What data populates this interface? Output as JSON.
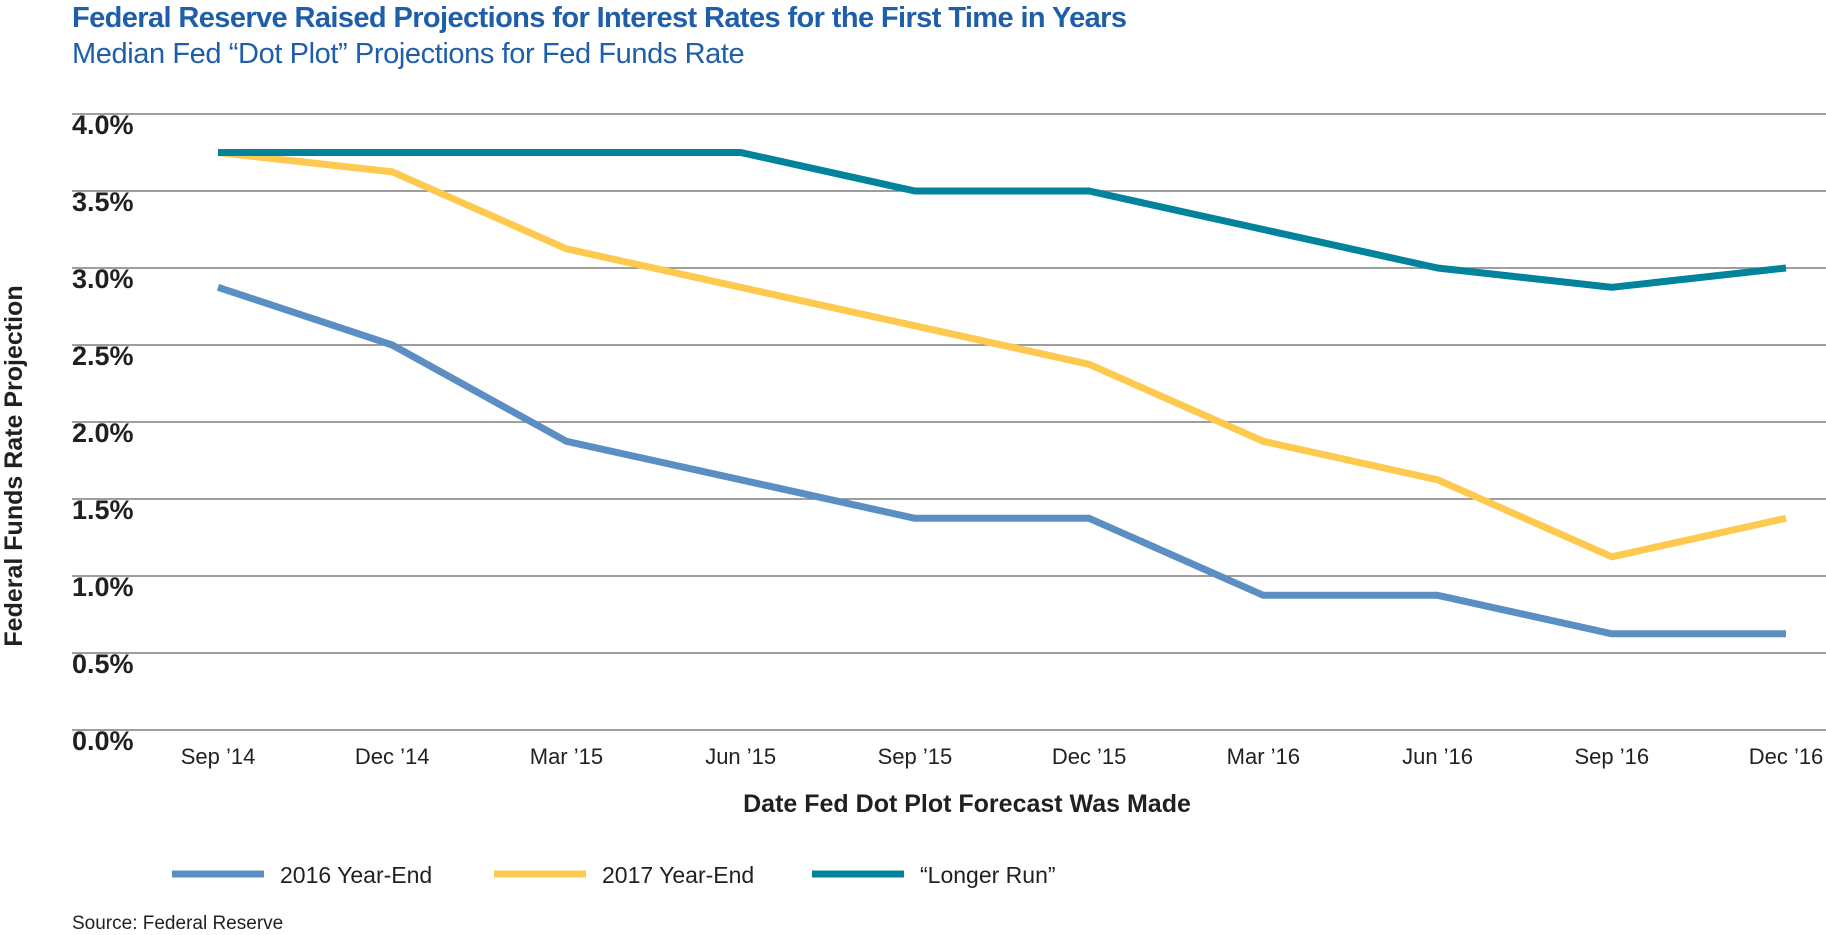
{
  "chart_data": {
    "type": "line",
    "title": "Federal Reserve Raised Projections for Interest Rates for the First Time in Years",
    "subtitle": "Median Fed “Dot Plot” Projections for Fed Funds Rate",
    "xlabel": "Date Fed Dot Plot Forecast Was Made",
    "ylabel": "Federal Funds Rate Projection",
    "categories": [
      "Sep ’14",
      "Dec ’14",
      "Mar ’15",
      "Jun ’15",
      "Sep ’15",
      "Dec ’15",
      "Mar ’16",
      "Jun ’16",
      "Sep ’16",
      "Dec ’16"
    ],
    "ylim": [
      0,
      4
    ],
    "yticks": [
      0,
      0.5,
      1,
      1.5,
      2,
      2.5,
      3,
      3.5,
      4
    ],
    "ytick_labels": [
      "0.0%",
      "0.5%",
      "1.0%",
      "1.5%",
      "2.0%",
      "2.5%",
      "3.0%",
      "3.5%",
      "4.0%"
    ],
    "grid": true,
    "legend_position": "bottom-left",
    "series": [
      {
        "name": "2016 Year-End",
        "color": "#5b8fc3",
        "values": [
          2.875,
          2.5,
          1.875,
          1.625,
          1.375,
          1.375,
          0.875,
          0.875,
          0.625,
          0.625
        ]
      },
      {
        "name": "2017 Year-End",
        "color": "#fdc94e",
        "values": [
          3.75,
          3.625,
          3.125,
          2.875,
          2.625,
          2.375,
          1.875,
          1.625,
          1.125,
          1.375
        ]
      },
      {
        "name": "“Longer Run”",
        "color": "#00839b",
        "values": [
          3.75,
          3.75,
          3.75,
          3.75,
          3.5,
          3.5,
          3.25,
          3.0,
          2.875,
          3.0
        ]
      }
    ]
  },
  "source": "Source: Federal Reserve"
}
